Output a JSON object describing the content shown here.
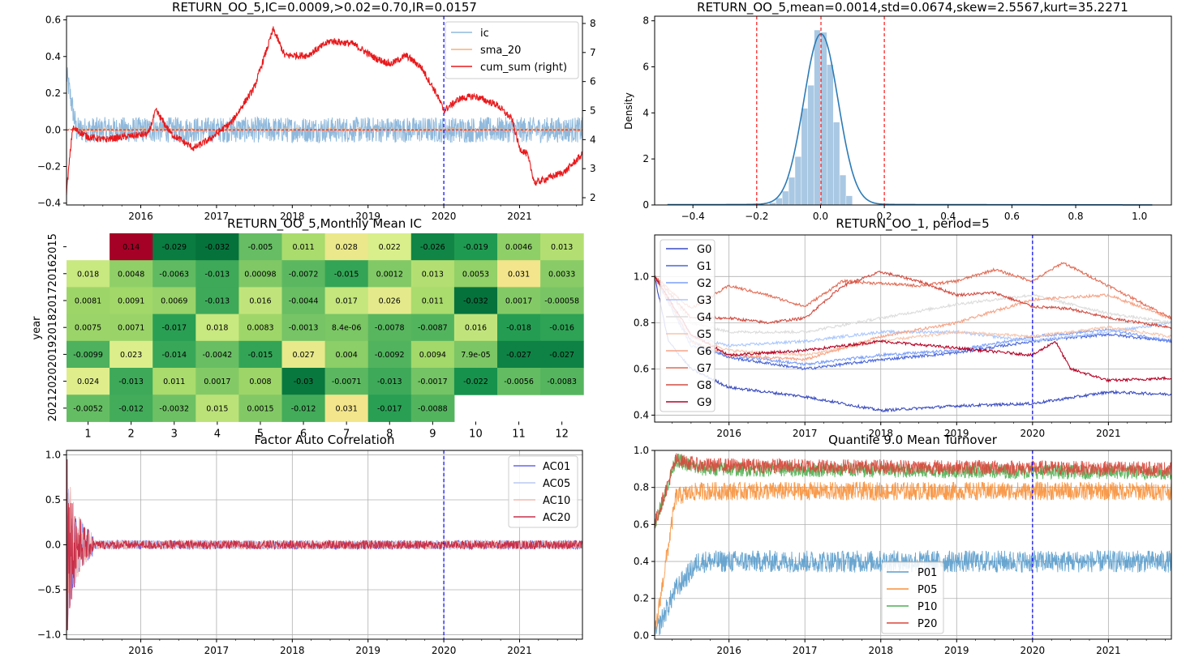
{
  "colors": {
    "ic": "#8fb9dc",
    "sma": "#f5b078",
    "cum": "#e8191c",
    "vline": "#0000ff",
    "zero": "#ff0000",
    "kde": "#2c7bb6",
    "hist": "#a9c8e3",
    "g": [
      "#3a4cc0",
      "#4a66d9",
      "#7b9ff9",
      "#aac7fd",
      "#dddcdc",
      "#f5c5ad",
      "#f6a385",
      "#e36c55",
      "#d24b40",
      "#b40426"
    ],
    "ac": [
      "#6666ee",
      "#b8c8f0",
      "#f4b8b0",
      "#c8304a"
    ],
    "p": [
      "#5a9ccb",
      "#f7903a",
      "#4caf50",
      "#d9473c"
    ],
    "hm_low": "#006837",
    "hm_mid": "#f0f08a",
    "hm_high": "#a50026"
  },
  "chart_data": [
    {
      "id": "ic_series",
      "type": "line",
      "title": "RETURN_OO_5,IC=0.0009,>0.02=0.70,IR=0.0157",
      "x_ticks": [
        "2016",
        "2017",
        "2018",
        "2019",
        "2020",
        "2021"
      ],
      "x_tick_pos": [
        2016,
        2017,
        2018,
        2019,
        2020,
        2021
      ],
      "xlim": [
        2015.02,
        2021.83
      ],
      "y_ticks": [
        "−0.4",
        "−0.2",
        "0.0",
        "0.2",
        "0.4",
        "0.6"
      ],
      "y_tick_vals": [
        -0.4,
        -0.2,
        0,
        0.2,
        0.4,
        0.6
      ],
      "ylim": [
        -0.41,
        0.62
      ],
      "y2_ticks": [
        "2",
        "3",
        "4",
        "5",
        "6",
        "7",
        "8"
      ],
      "y2_tick_vals": [
        2,
        3,
        4,
        5,
        6,
        7,
        8
      ],
      "y2lim": [
        1.75,
        8.25
      ],
      "vline_x": 2020,
      "series": [
        {
          "name": "ic",
          "axis": "left",
          "noise": 0.07,
          "x": [
            2015.02,
            2015.15,
            2016,
            2018,
            2020,
            2021.83
          ],
          "y": [
            0.3,
            0.0,
            0.0,
            0.0,
            0.0,
            0.0
          ]
        },
        {
          "name": "sma_20",
          "axis": "left",
          "noise": 0.008,
          "x": [
            2015.02,
            2021.83
          ],
          "y": [
            0.0,
            0.0
          ]
        },
        {
          "name": "cum_sum (right)",
          "axis": "right",
          "noise": 0.12,
          "x": [
            2015.02,
            2015.1,
            2015.3,
            2015.5,
            2015.8,
            2016.1,
            2016.2,
            2016.4,
            2016.7,
            2016.9,
            2017.2,
            2017.5,
            2017.75,
            2017.9,
            2018.2,
            2018.5,
            2018.8,
            2019.1,
            2019.3,
            2019.5,
            2019.7,
            2019.9,
            2020.0,
            2020.2,
            2020.4,
            2020.7,
            2020.9,
            2021.0,
            2021.1,
            2021.2,
            2021.4,
            2021.6,
            2021.83
          ],
          "y": [
            2.2,
            4.4,
            4.1,
            4.0,
            4.1,
            4.2,
            5.0,
            4.2,
            3.7,
            4.0,
            4.6,
            5.8,
            7.8,
            6.9,
            6.9,
            7.4,
            7.3,
            6.8,
            6.6,
            6.9,
            6.5,
            5.6,
            5.0,
            5.4,
            5.5,
            5.2,
            4.7,
            3.7,
            3.5,
            2.5,
            2.7,
            2.9,
            3.5
          ]
        }
      ]
    },
    {
      "id": "dist",
      "type": "histogram",
      "title": "RETURN_OO_5,mean=0.0014,std=0.0674,skew=2.5567,kurt=35.2271",
      "ylabel": "Density",
      "x_ticks": [
        "−0.4",
        "−0.2",
        "0.0",
        "0.2",
        "0.4",
        "0.6",
        "0.8",
        "1.0"
      ],
      "x_tick_vals": [
        -0.4,
        -0.2,
        0,
        0.2,
        0.4,
        0.6,
        0.8,
        1.0
      ],
      "xlim": [
        -0.52,
        1.1
      ],
      "y_ticks": [
        "0",
        "2",
        "4",
        "6",
        "8"
      ],
      "y_tick_vals": [
        0,
        2,
        4,
        6,
        8
      ],
      "ylim": [
        0,
        8.2
      ],
      "vlines": [
        -0.2,
        0.0014,
        0.2
      ],
      "bin_edges": [
        -0.16,
        -0.14,
        -0.12,
        -0.1,
        -0.08,
        -0.06,
        -0.04,
        -0.02,
        0.0,
        0.02,
        0.04,
        0.06,
        0.08,
        0.1
      ],
      "bin_density": [
        0.1,
        0.3,
        0.6,
        1.2,
        2.1,
        4.2,
        5.2,
        7.6,
        7.5,
        6.1,
        3.6,
        1.3,
        0.4
      ],
      "kde_mean": 0.0014,
      "kde_std": 0.054,
      "kde_peak": 7.4
    },
    {
      "id": "heatmap",
      "type": "heatmap",
      "title": "RETURN_OO_5,Monthly Mean IC",
      "ylabel": "year",
      "columns": [
        "1",
        "2",
        "3",
        "4",
        "5",
        "6",
        "7",
        "8",
        "9",
        "10",
        "11",
        "12"
      ],
      "rows": [
        "2015",
        "2016",
        "2017",
        "2018",
        "2019",
        "2020",
        "2021"
      ],
      "cells": [
        [
          "",
          "0.14",
          "-0.029",
          "-0.032",
          "-0.005",
          "0.011",
          "0.028",
          "0.022",
          "-0.026",
          "-0.019",
          "0.0046",
          "0.013"
        ],
        [
          "0.018",
          "0.0048",
          "-0.0063",
          "-0.013",
          "0.00098",
          "-0.0072",
          "-0.015",
          "0.0012",
          "0.013",
          "0.0053",
          "0.031",
          "0.0033"
        ],
        [
          "0.0081",
          "0.0091",
          "0.0069",
          "-0.013",
          "0.016",
          "-0.0044",
          "0.017",
          "0.026",
          "0.011",
          "-0.032",
          "0.0017",
          "-0.00058"
        ],
        [
          "0.0075",
          "0.0071",
          "-0.017",
          "0.018",
          "0.0083",
          "-0.0013",
          "8.4e-06",
          "-0.0078",
          "-0.0087",
          "0.016",
          "-0.018",
          "-0.016"
        ],
        [
          "-0.0099",
          "0.023",
          "-0.014",
          "-0.0042",
          "-0.015",
          "0.027",
          "0.004",
          "-0.0092",
          "0.0094",
          "7.9e-05",
          "-0.027",
          "-0.027"
        ],
        [
          "0.024",
          "-0.013",
          "0.011",
          "0.0017",
          "0.008",
          "-0.03",
          "-0.0071",
          "-0.013",
          "-0.0017",
          "-0.022",
          "-0.0056",
          "-0.0083"
        ],
        [
          "-0.0052",
          "-0.012",
          "-0.0032",
          "0.015",
          "0.0015",
          "-0.012",
          "0.031",
          "-0.017",
          "-0.0088",
          "",
          "",
          ""
        ]
      ]
    },
    {
      "id": "groups",
      "type": "line",
      "title": "RETURN_OO_1, period=5",
      "x_ticks": [
        "2016",
        "2017",
        "2018",
        "2019",
        "2020",
        "2021"
      ],
      "x_tick_pos": [
        2016,
        2017,
        2018,
        2019,
        2020,
        2021
      ],
      "xlim": [
        2015.02,
        2021.83
      ],
      "y_ticks": [
        "0.4",
        "0.6",
        "0.8",
        "1.0"
      ],
      "y_tick_vals": [
        0.4,
        0.6,
        0.8,
        1.0
      ],
      "ylim": [
        0.37,
        1.18
      ],
      "vline_x": 2020,
      "series": [
        {
          "name": "G0",
          "noise": 0.006,
          "x": [
            2015.02,
            2015.2,
            2015.5,
            2016,
            2017,
            2018,
            2019,
            2020,
            2021,
            2021.83
          ],
          "y": [
            1.0,
            0.72,
            0.6,
            0.52,
            0.48,
            0.42,
            0.44,
            0.45,
            0.5,
            0.49
          ]
        },
        {
          "name": "G1",
          "noise": 0.006,
          "x": [
            2015.02,
            2015.5,
            2016,
            2017,
            2018,
            2019,
            2020,
            2021,
            2021.83
          ],
          "y": [
            1.0,
            0.72,
            0.65,
            0.6,
            0.64,
            0.67,
            0.72,
            0.75,
            0.72
          ]
        },
        {
          "name": "G2",
          "noise": 0.006,
          "x": [
            2015.02,
            2015.5,
            2016,
            2017,
            2018,
            2019,
            2020,
            2021,
            2021.83
          ],
          "y": [
            1.0,
            0.7,
            0.66,
            0.62,
            0.66,
            0.68,
            0.74,
            0.77,
            0.72
          ]
        },
        {
          "name": "G3",
          "noise": 0.006,
          "x": [
            2015.02,
            2015.5,
            2016,
            2017,
            2018,
            2019,
            2020,
            2021,
            2021.83
          ],
          "y": [
            1.0,
            0.74,
            0.7,
            0.72,
            0.76,
            0.76,
            0.72,
            0.76,
            0.8
          ]
        },
        {
          "name": "G4",
          "noise": 0.006,
          "x": [
            2015.02,
            2015.5,
            2016,
            2017,
            2018,
            2019,
            2020,
            2021,
            2021.83
          ],
          "y": [
            1.0,
            0.8,
            0.76,
            0.76,
            0.82,
            0.88,
            0.92,
            0.84,
            0.8
          ]
        },
        {
          "name": "G5",
          "noise": 0.006,
          "x": [
            2015.02,
            2015.5,
            2016,
            2017,
            2018,
            2019,
            2020,
            2021,
            2021.83
          ],
          "y": [
            1.0,
            0.74,
            0.68,
            0.66,
            0.72,
            0.76,
            0.74,
            0.78,
            0.74
          ]
        },
        {
          "name": "G6",
          "noise": 0.006,
          "x": [
            2015.02,
            2015.5,
            2016,
            2017,
            2018,
            2019,
            2020,
            2021,
            2021.83
          ],
          "y": [
            1.0,
            0.72,
            0.66,
            0.64,
            0.74,
            0.8,
            0.9,
            0.92,
            0.82
          ]
        },
        {
          "name": "G7",
          "noise": 0.006,
          "x": [
            2015.02,
            2015.5,
            2016,
            2016.5,
            2017,
            2017.5,
            2018,
            2018.5,
            2019,
            2019.5,
            2020,
            2020.4,
            2021,
            2021.83
          ],
          "y": [
            1.0,
            0.86,
            0.96,
            0.92,
            0.87,
            0.98,
            0.97,
            0.96,
            0.98,
            1.03,
            0.98,
            1.06,
            0.96,
            0.82
          ]
        },
        {
          "name": "G8",
          "noise": 0.006,
          "x": [
            2015.02,
            2015.5,
            2016,
            2016.5,
            2017,
            2017.5,
            2018,
            2018.5,
            2019,
            2019.5,
            2020,
            2020.5,
            2021,
            2021.83
          ],
          "y": [
            1.0,
            0.82,
            0.82,
            0.8,
            0.82,
            0.96,
            1.02,
            0.98,
            0.92,
            0.93,
            0.87,
            0.86,
            0.82,
            0.78
          ]
        },
        {
          "name": "G9",
          "noise": 0.006,
          "x": [
            2015.02,
            2015.5,
            2016,
            2017,
            2018,
            2019,
            2020,
            2020.3,
            2020.5,
            2021,
            2021.83
          ],
          "y": [
            1.0,
            0.75,
            0.66,
            0.68,
            0.72,
            0.69,
            0.66,
            0.72,
            0.6,
            0.55,
            0.56
          ]
        }
      ]
    },
    {
      "id": "autocorr",
      "type": "line",
      "title": "Factor Auto Correlation",
      "x_ticks": [
        "2016",
        "2017",
        "2018",
        "2019",
        "2020",
        "2021"
      ],
      "x_tick_pos": [
        2016,
        2017,
        2018,
        2019,
        2020,
        2021
      ],
      "xlim": [
        2015.02,
        2021.83
      ],
      "y_ticks": [
        "−1.0",
        "−0.5",
        "0.0",
        "0.5",
        "1.0"
      ],
      "y_tick_vals": [
        -1,
        -0.5,
        0,
        0.5,
        1.0
      ],
      "ylim": [
        -1.05,
        1.05
      ],
      "vline_x": 2020,
      "series": [
        {
          "name": "AC01",
          "x": [
            2015.02,
            2021.83
          ],
          "y": [
            0,
            0
          ],
          "noise": 0.05
        },
        {
          "name": "AC05",
          "x": [
            2015.02,
            2021.83
          ],
          "y": [
            0,
            0
          ],
          "noise": 0.05
        },
        {
          "name": "AC10",
          "x": [
            2015.02,
            2021.83
          ],
          "y": [
            0,
            0
          ],
          "noise": 0.05
        },
        {
          "name": "AC20",
          "x": [
            2015.02,
            2021.83
          ],
          "y": [
            0,
            0
          ],
          "noise": 0.05
        }
      ]
    },
    {
      "id": "turnover",
      "type": "line",
      "title": "Quantile 9.0 Mean Turnover",
      "x_ticks": [
        "2016",
        "2017",
        "2018",
        "2019",
        "2020",
        "2021"
      ],
      "x_tick_pos": [
        2016,
        2017,
        2018,
        2019,
        2020,
        2021
      ],
      "xlim": [
        2015.02,
        2021.83
      ],
      "y_ticks": [
        "0.0",
        "0.2",
        "0.4",
        "0.6",
        "0.8",
        "1.0"
      ],
      "y_tick_vals": [
        0,
        0.2,
        0.4,
        0.6,
        0.8,
        1.0
      ],
      "ylim": [
        -0.02,
        1.0
      ],
      "vline_x": 2020,
      "series": [
        {
          "name": "P01",
          "x": [
            2015.02,
            2015.3,
            2015.6,
            2021.83
          ],
          "y": [
            0.0,
            0.25,
            0.4,
            0.4
          ],
          "noise": 0.06
        },
        {
          "name": "P05",
          "x": [
            2015.02,
            2015.3,
            2015.6,
            2021.83
          ],
          "y": [
            0.0,
            0.75,
            0.78,
            0.78
          ],
          "noise": 0.05
        },
        {
          "name": "P10",
          "x": [
            2015.02,
            2015.3,
            2015.6,
            2021.83
          ],
          "y": [
            0.6,
            0.95,
            0.9,
            0.88
          ],
          "noise": 0.04
        },
        {
          "name": "P20",
          "x": [
            2015.02,
            2015.3,
            2015.6,
            2021.83
          ],
          "y": [
            0.6,
            0.95,
            0.92,
            0.9
          ],
          "noise": 0.04
        }
      ]
    }
  ]
}
